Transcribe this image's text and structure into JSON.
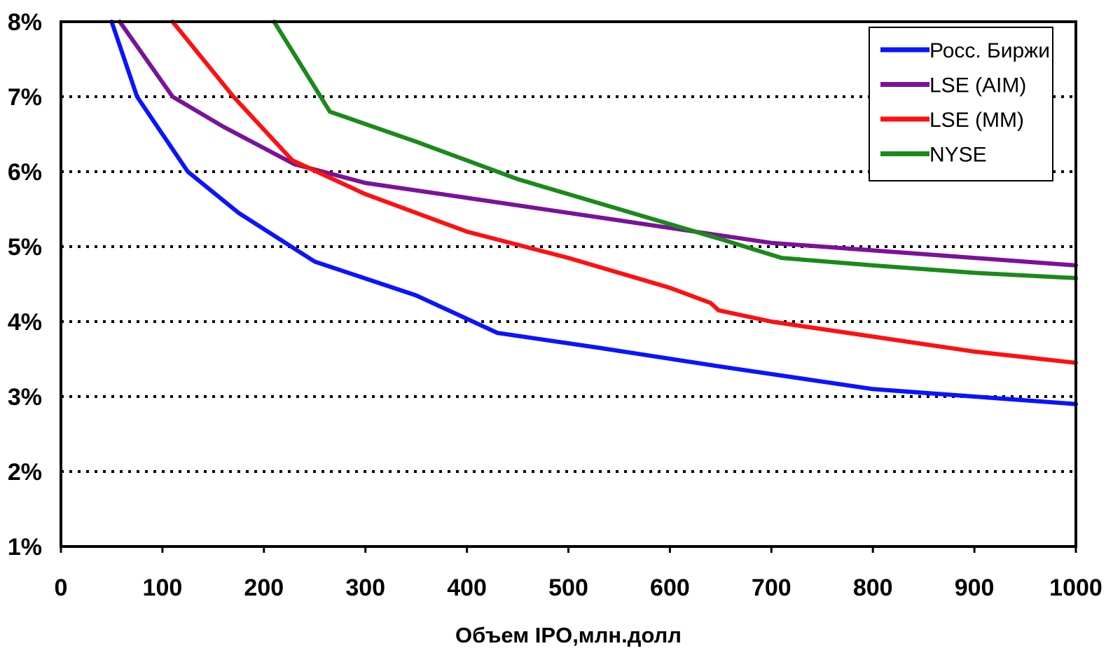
{
  "chart_data": {
    "type": "line",
    "title": "",
    "xlabel": "Объем IPO,млн.долл",
    "ylabel": "",
    "xlim": [
      0,
      1000
    ],
    "ylim": [
      1,
      8
    ],
    "x_ticks": [
      "0",
      "100",
      "200",
      "300",
      "400",
      "500",
      "600",
      "700",
      "800",
      "900",
      "1000"
    ],
    "y_ticks": [
      "1%",
      "2%",
      "3%",
      "4%",
      "5%",
      "6%",
      "7%",
      "8%"
    ],
    "grid": "horizontal dotted",
    "legend_position": "top-right",
    "series": [
      {
        "name": "Росс. Биржи",
        "color": "#0a14ff",
        "points": [
          [
            50,
            8.0
          ],
          [
            75,
            7.0
          ],
          [
            125,
            6.0
          ],
          [
            175,
            5.45
          ],
          [
            250,
            4.8
          ],
          [
            350,
            4.35
          ],
          [
            430,
            3.85
          ],
          [
            530,
            3.65
          ],
          [
            650,
            3.4
          ],
          [
            800,
            3.1
          ],
          [
            900,
            3.0
          ],
          [
            1000,
            2.9
          ]
        ]
      },
      {
        "name": "LSE (AIM)",
        "color": "#7a129a",
        "points": [
          [
            58,
            8.0
          ],
          [
            110,
            7.0
          ],
          [
            160,
            6.6
          ],
          [
            230,
            6.1
          ],
          [
            300,
            5.85
          ],
          [
            400,
            5.65
          ],
          [
            500,
            5.45
          ],
          [
            600,
            5.25
          ],
          [
            700,
            5.05
          ],
          [
            800,
            4.95
          ],
          [
            900,
            4.85
          ],
          [
            1000,
            4.75
          ]
        ]
      },
      {
        "name": "LSE (MM)",
        "color": "#ff1010",
        "points": [
          [
            110,
            8.0
          ],
          [
            170,
            7.0
          ],
          [
            228,
            6.15
          ],
          [
            300,
            5.7
          ],
          [
            400,
            5.2
          ],
          [
            500,
            4.85
          ],
          [
            600,
            4.45
          ],
          [
            640,
            4.25
          ],
          [
            648,
            4.15
          ],
          [
            700,
            4.0
          ],
          [
            800,
            3.8
          ],
          [
            900,
            3.6
          ],
          [
            1000,
            3.45
          ]
        ]
      },
      {
        "name": "NYSE",
        "color": "#1a8a1a",
        "points": [
          [
            210,
            8.0
          ],
          [
            265,
            6.8
          ],
          [
            350,
            6.4
          ],
          [
            450,
            5.9
          ],
          [
            550,
            5.5
          ],
          [
            650,
            5.1
          ],
          [
            710,
            4.85
          ],
          [
            800,
            4.75
          ],
          [
            900,
            4.65
          ],
          [
            1000,
            4.58
          ]
        ]
      }
    ]
  }
}
